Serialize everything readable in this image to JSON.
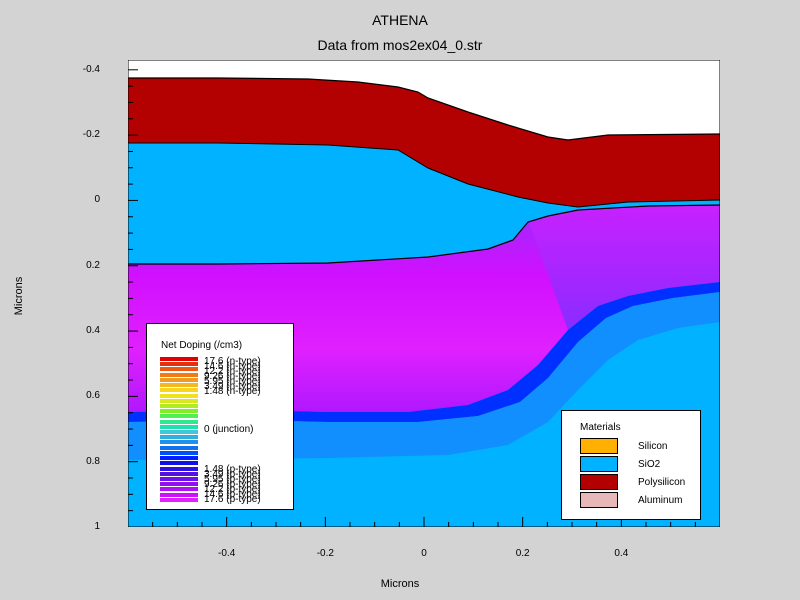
{
  "title": "ATHENA",
  "subtitle": "Data from mos2ex04_0.str",
  "chart_data": {
    "type": "heatmap",
    "xlabel": "Microns",
    "ylabel": "Microns",
    "xlim": [
      -0.6,
      0.6
    ],
    "ylim": [
      -0.43,
      1.0
    ],
    "y_inverted": true,
    "x_ticks": [
      "-0.4",
      "-0.2",
      "0",
      "0.2",
      "0.4"
    ],
    "y_ticks": [
      "-0.4",
      "-0.2",
      "0",
      "0.2",
      "0.4",
      "0.6",
      "0.8",
      "1"
    ],
    "x_tick_values": [
      -0.4,
      -0.2,
      0,
      0.2,
      0.4
    ],
    "y_tick_values": [
      -0.4,
      -0.2,
      0,
      0.2,
      0.4,
      0.6,
      0.8,
      1.0
    ],
    "regions": [
      {
        "material": "Polysilicon",
        "color": "#b30000"
      },
      {
        "material": "SiO2",
        "color": "#00b2ff"
      },
      {
        "material": "Silicon (doped)",
        "color": "#cc00ff"
      }
    ],
    "doping_legend": {
      "title": "Net Doping (/cm3)",
      "n_type_labels": [
        "17.6 (n-type)",
        "14.6 (n-type)",
        "12.2 (n-type)",
        "9.26 (n-type)",
        "5.95 (n-type)",
        "3.49 (n-type)",
        "1.48 (n-type)"
      ],
      "junction_label": "0 (junction)",
      "p_type_labels": [
        "1.48 (p-type)",
        "3.49 (p-type)",
        "5.95 (p-type)",
        "9.26 (p-type)",
        "12.2 (p-type)",
        "14.6 (p-type)",
        "17.6 (p-type)"
      ],
      "n_colors": [
        "#e00000",
        "#e53010",
        "#ea5a10",
        "#ef7a18",
        "#f29a20",
        "#f5b820",
        "#f8d420",
        "#f0e020",
        "#d8e820",
        "#b0ec20",
        "#80f020",
        "#50f050",
        "#30e890",
        "#20e0b0"
      ],
      "p_colors": [
        "#40c8d8",
        "#30b0e0",
        "#2090e8",
        "#1070f0",
        "#0050f8",
        "#0020ff",
        "#1010e8",
        "#3010e0",
        "#5010e0",
        "#7010e8",
        "#9010f0",
        "#b010f4",
        "#d010f8",
        "#e020ff"
      ]
    },
    "materials_legend": {
      "title": "Materials",
      "items": [
        {
          "name": "Silicon",
          "color": "#ffb000"
        },
        {
          "name": "SiO2",
          "color": "#00b2ff"
        },
        {
          "name": "Polysilicon",
          "color": "#b30000"
        },
        {
          "name": "Aluminum",
          "color": "#e8b8b8"
        }
      ]
    }
  }
}
